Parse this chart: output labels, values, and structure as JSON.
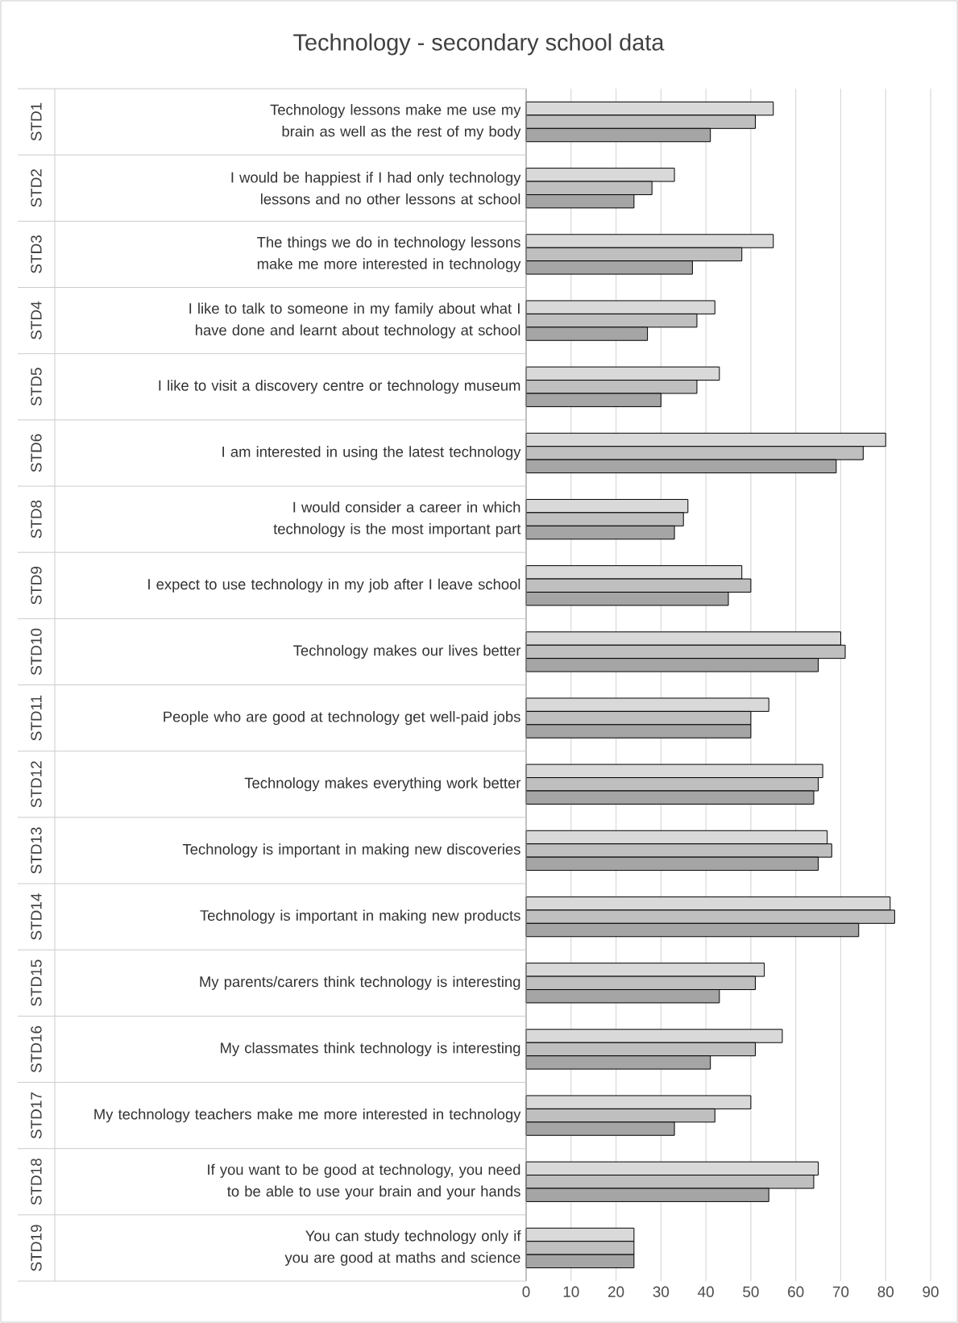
{
  "chart_data": {
    "type": "bar",
    "orientation": "horizontal",
    "title": "Technology - secondary school data",
    "categories": [
      "Technology lessons make me use my brain as well as the rest of my body",
      "I would be happiest if I had only technology lessons and no other lessons at school",
      "The things we do in technology lessons make me more interested in technology",
      "I like to talk to someone in my family about what I have done and learnt about technology at school",
      "I like to visit a discovery centre or technology museum",
      "I am interested in using the latest technology",
      "I would consider a career in which  technology is the most important part",
      "I expect to use technology in my job after I leave school",
      "Technology makes our lives better",
      "People who are good at technology get well-paid jobs",
      "Technology makes everything work better",
      "Technology is important in making new discoveries",
      "Technology is important in making new products",
      "My parents/carers think technology is interesting",
      "My classmates think technology is interesting",
      "My technology teachers make me more interested in technology",
      "If you want to be good at technology, you need to be able to use your brain and your hands",
      "You can study technology only if you are good at maths and science"
    ],
    "series": [
      {
        "color": "#d9d9d9",
        "values": [
          55,
          33,
          55,
          42,
          43,
          80,
          36,
          48,
          70,
          54,
          66,
          67,
          81,
          53,
          57,
          50,
          65,
          24
        ]
      },
      {
        "color": "#bfbfbf",
        "values": [
          51,
          28,
          48,
          38,
          38,
          75,
          35,
          50,
          71,
          50,
          65,
          68,
          82,
          51,
          51,
          42,
          64,
          24
        ]
      },
      {
        "color": "#a5a5a5",
        "values": [
          41,
          24,
          37,
          27,
          30,
          69,
          33,
          45,
          65,
          50,
          64,
          65,
          74,
          43,
          41,
          33,
          54,
          24
        ]
      }
    ],
    "xlim": [
      0,
      90
    ],
    "xticks": [
      0,
      10,
      20,
      30,
      40,
      50,
      60,
      70,
      80,
      90
    ],
    "grid": "x",
    "annotations": [
      "STD1",
      "STD2",
      "STD3",
      "STD4",
      "STD5",
      "STD6",
      "STD8",
      "STD9",
      "STD10",
      "STD11",
      "STD12",
      "STD13",
      "STD14",
      "STD15",
      "STD16",
      "STD17",
      "STD18",
      "STD19"
    ]
  }
}
